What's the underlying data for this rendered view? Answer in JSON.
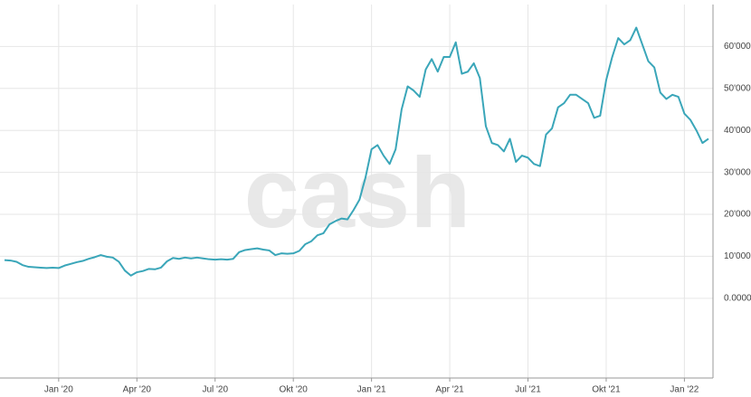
{
  "chart_data": {
    "type": "line",
    "watermark": "cash",
    "categories": [
      null,
      null,
      null,
      null,
      null,
      null,
      null,
      null,
      null,
      "Jan '20",
      null,
      null,
      null,
      null,
      null,
      null,
      null,
      null,
      null,
      null,
      null,
      null,
      "Apr '20",
      null,
      null,
      null,
      null,
      null,
      null,
      null,
      null,
      null,
      null,
      null,
      null,
      "Jul '20",
      null,
      null,
      null,
      null,
      null,
      null,
      null,
      null,
      null,
      null,
      null,
      null,
      "Okt '20",
      null,
      null,
      null,
      null,
      null,
      null,
      null,
      null,
      null,
      null,
      null,
      null,
      "Jan '21",
      null,
      null,
      null,
      null,
      null,
      null,
      null,
      null,
      null,
      null,
      null,
      null,
      "Apr '21",
      null,
      null,
      null,
      null,
      null,
      null,
      null,
      null,
      null,
      null,
      null,
      null,
      "Jul '21",
      null,
      null,
      null,
      null,
      null,
      null,
      null,
      null,
      null,
      null,
      null,
      null,
      "Okt '21",
      null,
      null,
      null,
      null,
      null,
      null,
      null,
      null,
      null,
      null,
      null,
      null,
      "Jan '22",
      null,
      null,
      null,
      null
    ],
    "series": [
      {
        "color": "#3aa6b9",
        "values": [
          9100,
          9000,
          8700,
          7900,
          7500,
          7400,
          7300,
          7200,
          7300,
          7200,
          7800,
          8200,
          8600,
          8900,
          9400,
          9800,
          10300,
          9900,
          9700,
          8700,
          6600,
          5400,
          6200,
          6500,
          7000,
          6900,
          7300,
          8800,
          9600,
          9400,
          9700,
          9500,
          9700,
          9500,
          9300,
          9200,
          9300,
          9200,
          9400,
          11000,
          11500,
          11700,
          11900,
          11600,
          11400,
          10300,
          10700,
          10600,
          10700,
          11300,
          12900,
          13600,
          15000,
          15500,
          17600,
          18400,
          19000,
          18800,
          21000,
          23500,
          28800,
          35500,
          36500,
          34000,
          32000,
          35500,
          45000,
          50500,
          49500,
          48000,
          54500,
          57000,
          54000,
          57500,
          57500,
          61000,
          53500,
          54000,
          56000,
          52500,
          41000,
          37000,
          36500,
          35000,
          38000,
          32500,
          34000,
          33500,
          32000,
          31500,
          39000,
          40500,
          45500,
          46500,
          48500,
          48500,
          47500,
          46500,
          43000,
          43500,
          52000,
          57500,
          62000,
          60500,
          61500,
          64500,
          60500,
          56500,
          55000,
          49000,
          47500,
          48500,
          48000,
          44000,
          42500,
          40000,
          37000,
          38000
        ]
      }
    ],
    "ylim": [
      -19000,
      70000
    ],
    "yticks": [
      {
        "value": 0,
        "label": "0.0000"
      },
      {
        "value": 10000,
        "label": "10'000"
      },
      {
        "value": 20000,
        "label": "20'000"
      },
      {
        "value": 30000,
        "label": "30'000"
      },
      {
        "value": 40000,
        "label": "40'000"
      },
      {
        "value": 50000,
        "label": "50'000"
      },
      {
        "value": 60000,
        "label": "60'000"
      }
    ],
    "grid": true
  }
}
